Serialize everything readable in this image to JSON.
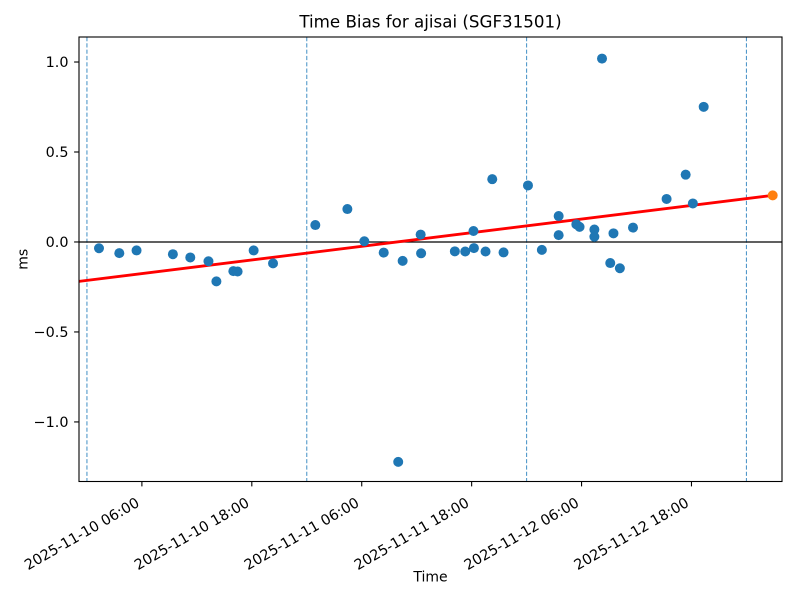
{
  "chart_data": {
    "type": "scatter",
    "title": "Time Bias for ajisai (SGF31501)",
    "xlabel": "Time",
    "ylabel": "ms",
    "x_start": "2025-11-09T23:08",
    "x_end": "2025-11-13T03:53",
    "ylim": [
      -1.331,
      1.139
    ],
    "grid": "vertical dashed lines at day boundaries",
    "legend_position": "none",
    "y_ticks": [
      {
        "value": 1.0,
        "label": "1.0"
      },
      {
        "value": 0.5,
        "label": "0.5"
      },
      {
        "value": 0.0,
        "label": "0.0"
      },
      {
        "value": -0.5,
        "label": "−0.5"
      },
      {
        "value": -1.0,
        "label": "−1.0"
      }
    ],
    "x_ticks": [
      {
        "t": "2025-11-10T06:00",
        "label": "2025-11-10 06:00"
      },
      {
        "t": "2025-11-10T18:00",
        "label": "2025-11-10 18:00"
      },
      {
        "t": "2025-11-11T06:00",
        "label": "2025-11-11 06:00"
      },
      {
        "t": "2025-11-11T18:00",
        "label": "2025-11-11 18:00"
      },
      {
        "t": "2025-11-12T06:00",
        "label": "2025-11-12 06:00"
      },
      {
        "t": "2025-11-12T18:00",
        "label": "2025-11-12 18:00"
      }
    ],
    "day_lines": [
      "2025-11-10T00:00",
      "2025-11-11T00:00",
      "2025-11-12T00:00",
      "2025-11-13T00:00"
    ],
    "zero_line_ms": 0.0,
    "colors": {
      "measurement": "#1f77b4",
      "prediction": "#ff7f0e",
      "trend": "#ff0000",
      "day_line": "#4a94c8",
      "zero_line": "#000000",
      "axes": "#000000",
      "background": "#ffffff"
    },
    "series": [
      {
        "name": "bias-measurements",
        "type": "scatter",
        "color": "#1f77b4",
        "points": [
          {
            "t": "2025-11-10T01:19",
            "ms": -0.035
          },
          {
            "t": "2025-11-10T03:32",
            "ms": -0.062
          },
          {
            "t": "2025-11-10T05:25",
            "ms": -0.047
          },
          {
            "t": "2025-11-10T09:23",
            "ms": -0.068
          },
          {
            "t": "2025-11-10T11:17",
            "ms": -0.086
          },
          {
            "t": "2025-11-10T13:16",
            "ms": -0.107
          },
          {
            "t": "2025-11-10T14:08",
            "ms": -0.219
          },
          {
            "t": "2025-11-10T15:59",
            "ms": -0.162
          },
          {
            "t": "2025-11-10T16:27",
            "ms": -0.164
          },
          {
            "t": "2025-11-10T18:12",
            "ms": -0.047
          },
          {
            "t": "2025-11-10T20:19",
            "ms": -0.119
          },
          {
            "t": "2025-11-11T00:56",
            "ms": 0.094
          },
          {
            "t": "2025-11-11T04:26",
            "ms": 0.183
          },
          {
            "t": "2025-11-11T06:17",
            "ms": 0.004
          },
          {
            "t": "2025-11-11T08:24",
            "ms": -0.059
          },
          {
            "t": "2025-11-11T09:59",
            "ms": -1.222
          },
          {
            "t": "2025-11-11T10:28",
            "ms": -0.105
          },
          {
            "t": "2025-11-11T12:26",
            "ms": 0.041
          },
          {
            "t": "2025-11-11T12:29",
            "ms": -0.063
          },
          {
            "t": "2025-11-11T16:10",
            "ms": -0.052
          },
          {
            "t": "2025-11-11T17:18",
            "ms": -0.053
          },
          {
            "t": "2025-11-11T18:12",
            "ms": 0.061
          },
          {
            "t": "2025-11-11T18:15",
            "ms": -0.034
          },
          {
            "t": "2025-11-11T19:31",
            "ms": -0.053
          },
          {
            "t": "2025-11-11T20:15",
            "ms": 0.349
          },
          {
            "t": "2025-11-11T21:29",
            "ms": -0.058
          },
          {
            "t": "2025-11-12T00:09",
            "ms": 0.314
          },
          {
            "t": "2025-11-12T01:40",
            "ms": -0.044
          },
          {
            "t": "2025-11-12T03:30",
            "ms": 0.144
          },
          {
            "t": "2025-11-12T03:30",
            "ms": 0.038
          },
          {
            "t": "2025-11-12T05:26",
            "ms": 0.098
          },
          {
            "t": "2025-11-12T05:47",
            "ms": 0.084
          },
          {
            "t": "2025-11-12T07:24",
            "ms": 0.069
          },
          {
            "t": "2025-11-12T07:24",
            "ms": 0.029
          },
          {
            "t": "2025-11-12T08:14",
            "ms": 1.019
          },
          {
            "t": "2025-11-12T09:08",
            "ms": -0.117
          },
          {
            "t": "2025-11-12T09:29",
            "ms": 0.048
          },
          {
            "t": "2025-11-12T10:11",
            "ms": -0.146
          },
          {
            "t": "2025-11-12T11:37",
            "ms": 0.08
          },
          {
            "t": "2025-11-12T15:17",
            "ms": 0.239
          },
          {
            "t": "2025-11-12T17:22",
            "ms": 0.374
          },
          {
            "t": "2025-11-12T18:09",
            "ms": 0.214
          },
          {
            "t": "2025-11-12T19:20",
            "ms": 0.751
          }
        ]
      },
      {
        "name": "trend-fit",
        "type": "line",
        "color": "#ff0000",
        "points": [
          {
            "t": "2025-11-09T23:08",
            "ms": -0.219
          },
          {
            "t": "2025-11-13T02:52",
            "ms": 0.259
          }
        ]
      },
      {
        "name": "prediction",
        "type": "scatter",
        "color": "#ff7f0e",
        "points": [
          {
            "t": "2025-11-13T02:52",
            "ms": 0.259
          }
        ]
      }
    ]
  }
}
